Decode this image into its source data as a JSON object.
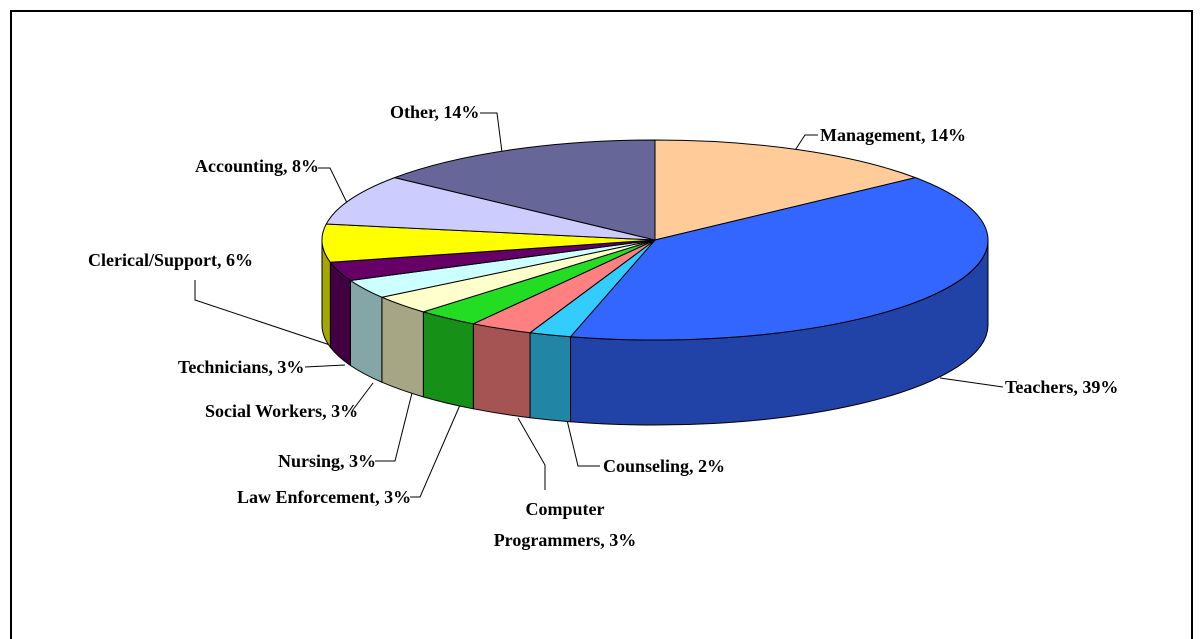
{
  "chart_data": {
    "type": "pie3d",
    "categories": [
      "Management, 14%",
      "Teachers, 39%",
      "Counseling, 2%",
      "Computer Programmers, 3%",
      "Law Enforcement, 3%",
      "Nursing, 3%",
      "Social Workers, 3%",
      "Technicians, 3%",
      "Clerical/Support, 6%",
      "Accounting, 8%",
      "Other, 14%"
    ],
    "values": [
      14,
      39,
      2,
      3,
      3,
      3,
      3,
      3,
      6,
      8,
      14
    ],
    "colors": [
      "#FFCC99",
      "#3366FF",
      "#33CCFF",
      "#FF8080",
      "#22DD22",
      "#FFFFCC",
      "#CCFFFF",
      "#660066",
      "#FFFF00",
      "#CCCCFF",
      "#666699"
    ]
  }
}
